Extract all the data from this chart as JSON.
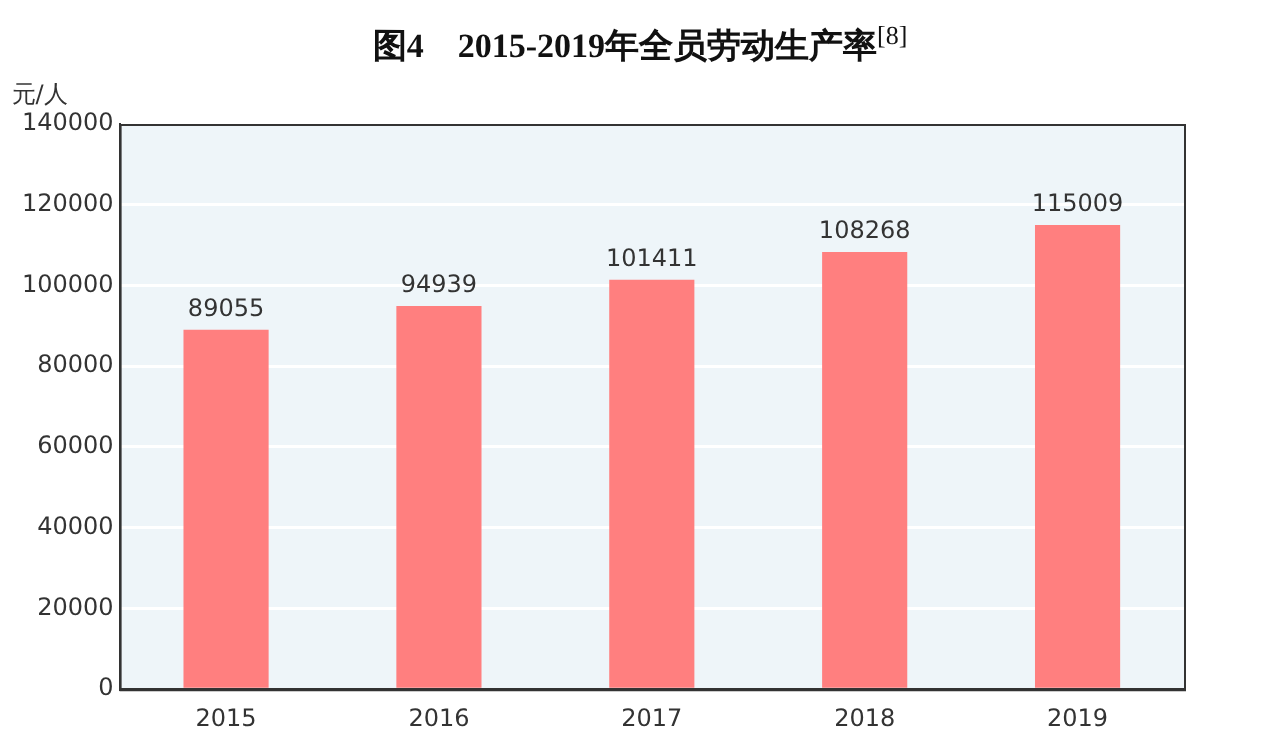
{
  "chart_data": {
    "type": "bar",
    "title": "图4　2015-2019年全员劳动生产率$^{[8]}$",
    "ylabel": "元/人",
    "categories": [
      "2015",
      "2016",
      "2017",
      "2018",
      "2019"
    ],
    "values": [
      89055,
      94939,
      101411,
      108268,
      115009
    ],
    "color": "#ff7f7f",
    "ylim": [
      0,
      140000
    ],
    "yticks": [
      0,
      20000,
      40000,
      60000,
      80000,
      100000,
      120000,
      140000
    ],
    "grid": "y",
    "data_labels": true,
    "legend": false
  }
}
